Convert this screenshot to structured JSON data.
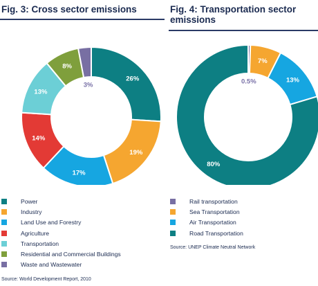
{
  "chart_data": [
    {
      "type": "pie",
      "title": "Fig. 3: Cross sector emissions",
      "hole": "donut",
      "slices": [
        {
          "label": "Power",
          "value": 26,
          "value_label": "26%",
          "color": "#0d7f83"
        },
        {
          "label": "Industry",
          "value": 19,
          "value_label": "19%",
          "color": "#f5a630"
        },
        {
          "label": "Land Use and Forestry",
          "value": 17,
          "value_label": "17%",
          "color": "#16a6e1"
        },
        {
          "label": "Agriculture",
          "value": 14,
          "value_label": "14%",
          "color": "#e33a35"
        },
        {
          "label": "Transportation",
          "value": 13,
          "value_label": "13%",
          "color": "#6ccfd6"
        },
        {
          "label": "Residential and Commercial Buildings",
          "value": 8,
          "value_label": "8%",
          "color": "#7f9f3c"
        },
        {
          "label": "Waste and Wastewater",
          "value": 3,
          "value_label": "3%",
          "color": "#786fa3"
        }
      ],
      "source": "Source: World Development Report, 2010"
    },
    {
      "type": "pie",
      "title": "Fig. 4: Transportation sector emissions",
      "hole": "donut",
      "slices": [
        {
          "label": "Rail transportation",
          "value": 0.5,
          "value_label": "0.5%",
          "color": "#786fa3"
        },
        {
          "label": "Sea Transportation",
          "value": 7,
          "value_label": "7%",
          "color": "#f5a630"
        },
        {
          "label": "Air Transportation",
          "value": 13,
          "value_label": "13%",
          "color": "#16a6e1"
        },
        {
          "label": "Road Transportation",
          "value": 80,
          "value_label": "80%",
          "color": "#0d7f83"
        }
      ],
      "source": "Source: UNEP Climate Neutral Network"
    }
  ]
}
